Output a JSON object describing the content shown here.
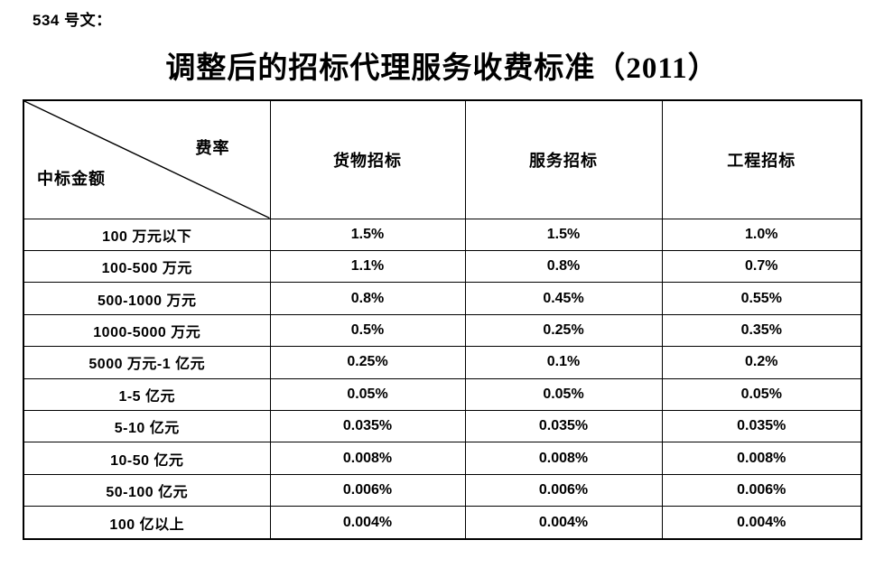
{
  "doc_label": "534 号文：",
  "title": "调整后的招标代理服务收费标准（2011）",
  "table": {
    "corner": {
      "top_right": "费率",
      "bottom_left": "中标金额"
    },
    "columns": [
      "货物招标",
      "服务招标",
      "工程招标"
    ],
    "rows": [
      {
        "label": "100 万元以下",
        "values": [
          "1.5%",
          "1.5%",
          "1.0%"
        ]
      },
      {
        "label": "100-500 万元",
        "values": [
          "1.1%",
          "0.8%",
          "0.7%"
        ]
      },
      {
        "label": "500-1000 万元",
        "values": [
          "0.8%",
          "0.45%",
          "0.55%"
        ]
      },
      {
        "label": "1000-5000 万元",
        "values": [
          "0.5%",
          "0.25%",
          "0.35%"
        ]
      },
      {
        "label": "5000 万元-1 亿元",
        "values": [
          "0.25%",
          "0.1%",
          "0.2%"
        ]
      },
      {
        "label": "1-5 亿元",
        "values": [
          "0.05%",
          "0.05%",
          "0.05%"
        ]
      },
      {
        "label": "5-10 亿元",
        "values": [
          "0.035%",
          "0.035%",
          "0.035%"
        ]
      },
      {
        "label": "10-50 亿元",
        "values": [
          "0.008%",
          "0.008%",
          "0.008%"
        ]
      },
      {
        "label": "50-100 亿元",
        "values": [
          "0.006%",
          "0.006%",
          "0.006%"
        ]
      },
      {
        "label": "100 亿以上",
        "values": [
          "0.004%",
          "0.004%",
          "0.004%"
        ]
      }
    ]
  },
  "colors": {
    "text": "#000000",
    "border": "#000000",
    "page_background": "#ffffff"
  }
}
